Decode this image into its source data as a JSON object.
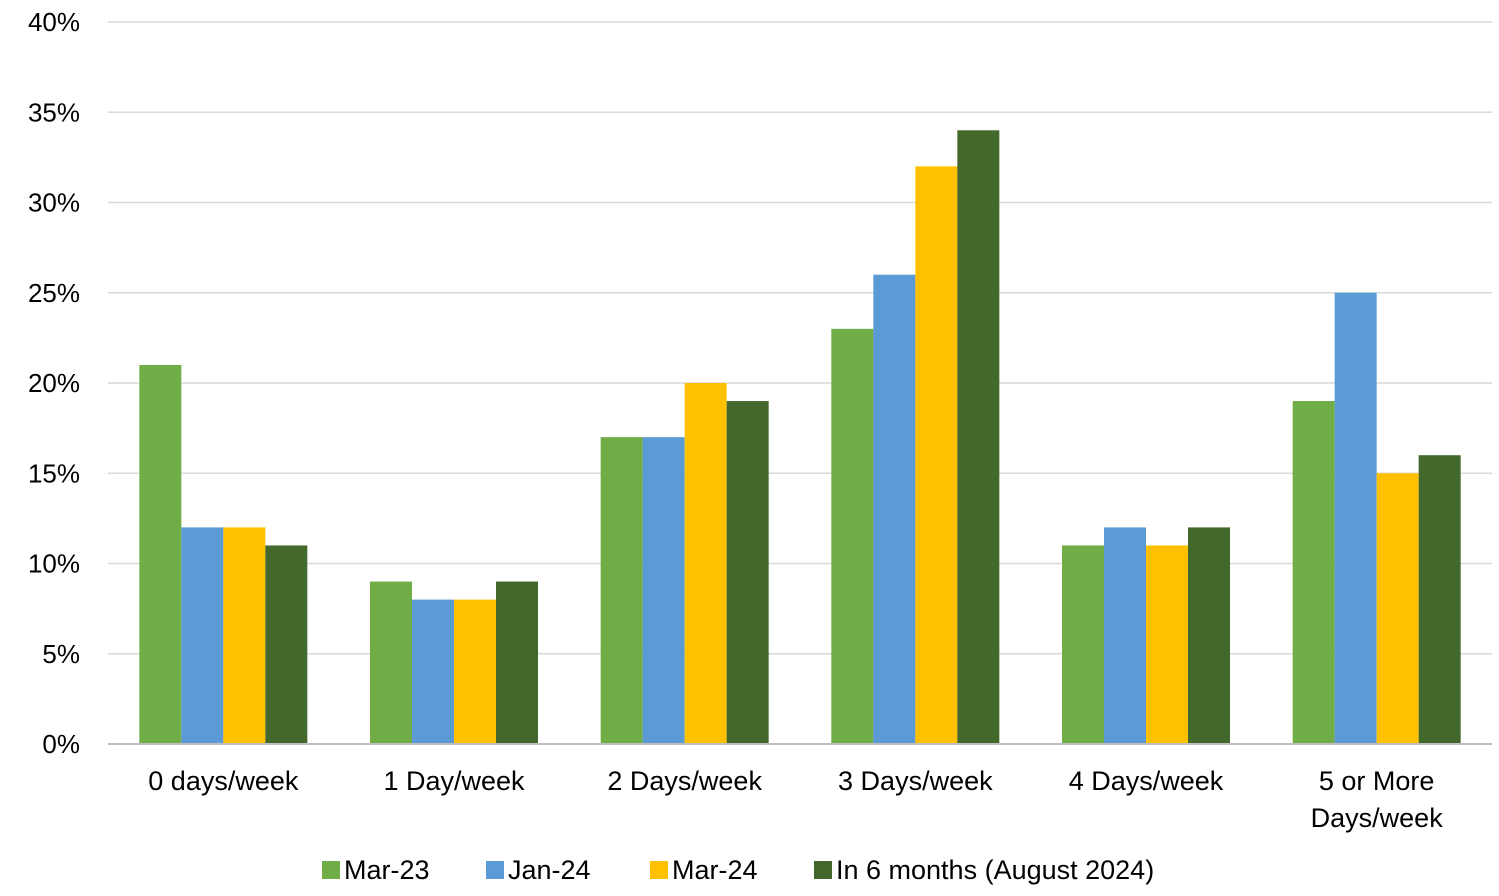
{
  "chart_data": {
    "type": "bar",
    "title": "",
    "xlabel": "",
    "ylabel": "",
    "categories": [
      [
        "0 days/week"
      ],
      [
        "1 Day/week"
      ],
      [
        "2 Days/week"
      ],
      [
        "3 Days/week"
      ],
      [
        "4 Days/week"
      ],
      [
        "5 or More",
        "Days/week"
      ]
    ],
    "series": [
      {
        "name": "Mar-23",
        "color": "#70ad47",
        "values": [
          21,
          9,
          17,
          23,
          11,
          19
        ]
      },
      {
        "name": "Jan-24",
        "color": "#5b9bd5",
        "values": [
          12,
          8,
          17,
          26,
          12,
          25
        ]
      },
      {
        "name": "Mar-24",
        "color": "#ffc000",
        "values": [
          12,
          8,
          20,
          32,
          11,
          15
        ]
      },
      {
        "name": "In 6 months (August 2024)",
        "color": "#43682b",
        "values": [
          11,
          9,
          19,
          34,
          12,
          16
        ]
      }
    ],
    "ylim": [
      0,
      40
    ],
    "yticks": [
      0,
      5,
      10,
      15,
      20,
      25,
      30,
      35,
      40
    ],
    "ytick_format": "{}%",
    "grid": true,
    "legend_position": "bottom"
  }
}
